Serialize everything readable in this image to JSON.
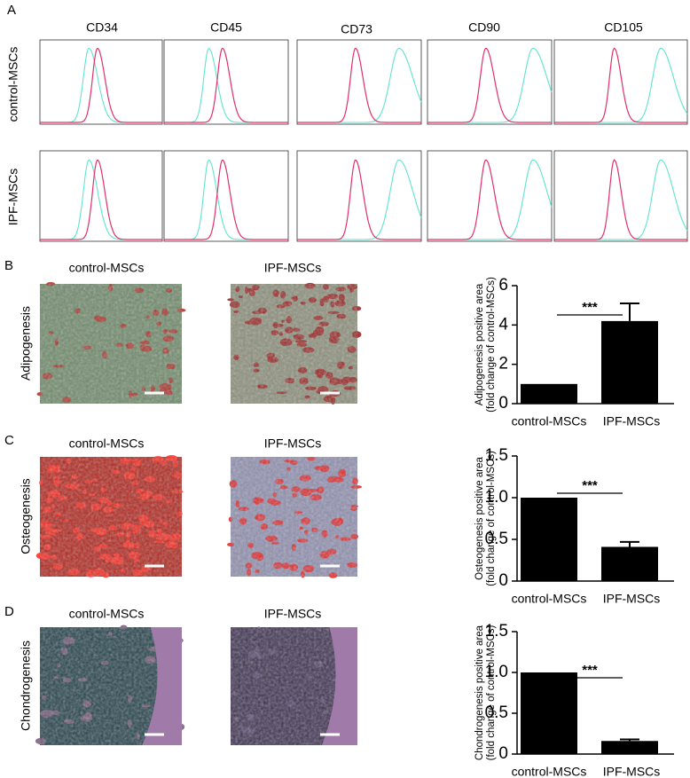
{
  "figure": {
    "panel_labels": [
      "A",
      "B",
      "C",
      "D"
    ],
    "flow": {
      "markers": [
        "CD34",
        "CD45",
        "CD73",
        "CD90",
        "CD105"
      ],
      "groups": [
        "control-MSCs",
        "IPF-MSCs"
      ]
    },
    "stain_groups": [
      "control-MSCs",
      "IPF-MSCs"
    ],
    "stains": [
      "Adipogenesis",
      "Osteogenesis",
      "Chondrogenesis"
    ]
  },
  "chart_data": [
    {
      "type": "bar",
      "y_label": [
        "Adipogenesis positive area",
        "(fold change of control-MSCs)"
      ],
      "categories": [
        "control-MSCs",
        "IPF-MSCs"
      ],
      "values": [
        1,
        4.2
      ],
      "errors": [
        null,
        0.9
      ],
      "color": "#000000",
      "ylim": [
        0,
        6
      ],
      "yticks": [
        0,
        2,
        4,
        6
      ],
      "annotation": "***"
    },
    {
      "type": "bar",
      "y_label": [
        "Osteogenesis positive area",
        "(fold change of control-MSCs)"
      ],
      "categories": [
        "control-MSCs",
        "IPF-MSCs"
      ],
      "values": [
        1,
        0.41
      ],
      "errors": [
        null,
        0.06
      ],
      "color": "#000000",
      "ylim": [
        0,
        1.5
      ],
      "yticks": [
        0,
        0.5,
        {
          "value": 1,
          "label": "1.0"
        },
        1.5
      ],
      "annotation": "***"
    },
    {
      "type": "bar",
      "y_label": [
        "Chondrogenesis positive area",
        "(fold change of control-MSCs)"
      ],
      "categories": [
        "control-MSCs",
        "IPF-MSCs"
      ],
      "values": [
        1,
        0.16
      ],
      "errors": [
        null,
        0.02
      ],
      "color": "#000000",
      "ylim": [
        0,
        1.5
      ],
      "yticks": [
        0,
        0.5,
        {
          "value": 1,
          "label": "1.0"
        },
        1.5
      ],
      "annotation": "***"
    }
  ]
}
